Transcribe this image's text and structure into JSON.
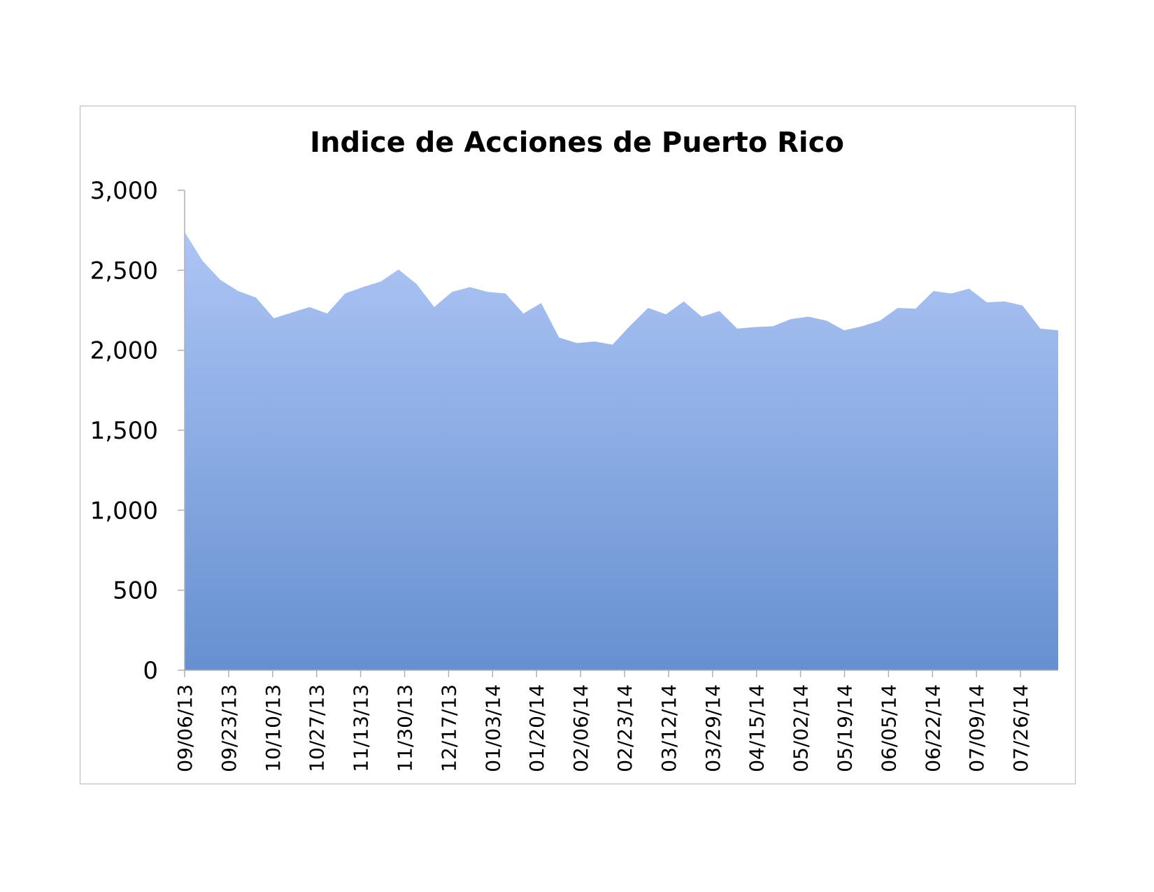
{
  "chart_data": {
    "type": "area",
    "title": "Indice de Acciones de Puerto Rico",
    "xlabel": "",
    "ylabel": "",
    "ylim": [
      0,
      3000
    ],
    "yticks": [
      "0",
      "500",
      "1,000",
      "1,500",
      "2,000",
      "2,500",
      "3,000"
    ],
    "grid": false,
    "legend": "none",
    "colors": {
      "fill_top": "#adc5f5",
      "fill_bottom": "#6690d0",
      "axis": "#b0b0b0"
    },
    "x_tick_labels": [
      "09/06/13",
      "09/23/13",
      "10/10/13",
      "10/27/13",
      "11/13/13",
      "11/30/13",
      "12/17/13",
      "01/03/14",
      "01/20/14",
      "02/06/14",
      "02/23/14",
      "03/12/14",
      "03/29/14",
      "04/15/14",
      "05/02/14",
      "05/19/14",
      "06/05/14",
      "06/22/14",
      "07/09/14",
      "07/26/14"
    ],
    "x": [
      "09/06/13",
      "09/13/13",
      "09/20/13",
      "09/27/13",
      "10/04/13",
      "10/11/13",
      "10/18/13",
      "10/25/13",
      "11/01/13",
      "11/08/13",
      "11/15/13",
      "11/22/13",
      "11/29/13",
      "12/06/13",
      "12/13/13",
      "12/20/13",
      "12/27/13",
      "01/03/14",
      "01/10/14",
      "01/17/14",
      "01/24/14",
      "01/31/14",
      "02/07/14",
      "02/14/14",
      "02/21/14",
      "02/28/14",
      "03/07/14",
      "03/14/14",
      "03/21/14",
      "03/28/14",
      "04/04/14",
      "04/11/14",
      "04/18/14",
      "04/25/14",
      "05/02/14",
      "05/09/14",
      "05/16/14",
      "05/23/14",
      "05/30/14",
      "06/06/14",
      "06/13/14",
      "06/20/14",
      "06/27/14",
      "07/04/14",
      "07/11/14",
      "07/18/14",
      "07/25/14",
      "08/01/14",
      "08/08/14",
      "08/15/14"
    ],
    "values": [
      2740,
      2560,
      2440,
      2370,
      2330,
      2200,
      2235,
      2270,
      2230,
      2355,
      2395,
      2430,
      2505,
      2415,
      2270,
      2365,
      2395,
      2365,
      2355,
      2230,
      2295,
      2080,
      2045,
      2055,
      2035,
      2155,
      2265,
      2225,
      2305,
      2210,
      2245,
      2135,
      2145,
      2150,
      2195,
      2210,
      2185,
      2125,
      2150,
      2185,
      2265,
      2260,
      2370,
      2355,
      2385,
      2300,
      2305,
      2280,
      2135,
      2125
    ]
  }
}
